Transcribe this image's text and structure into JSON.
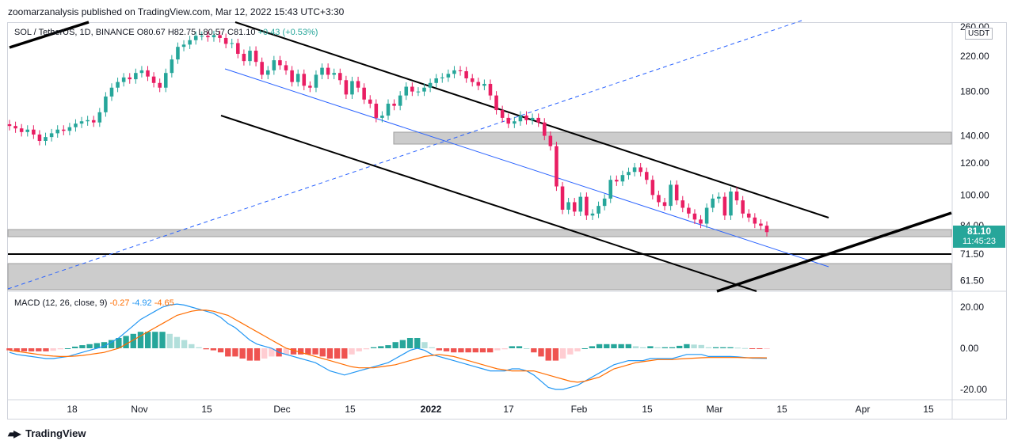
{
  "publisher": "zoomarzanalysis published on TradingView.com, Mar 12, 2022 15:43 UTC+3:30",
  "brand": "TradingView",
  "legend": {
    "symbol": "SOL / TetherUS, 1D, BINANCE",
    "ohlc": "O80.67 H82.75 L80.57 C81.10",
    "change": "+0.43 (+0.53%)"
  },
  "currency": "USDT",
  "last_price": {
    "value": "81.10",
    "countdown": "11:45:23"
  },
  "macd_legend": {
    "label": "MACD (12, 26, close, 9)",
    "hist": "-0.27",
    "macd": "-4.92",
    "signal": "-4.65"
  },
  "colors": {
    "up": "#26a69a",
    "down": "#e91e63",
    "macd": "#2196f3",
    "signal": "#ff6d00",
    "hist_up": "#26a69a",
    "hist_down": "#ef5350",
    "zone": "#cccccc"
  },
  "chart_data": [
    {
      "type": "candlestick",
      "title": "SOL / TetherUS, 1D, BINANCE",
      "x_tick_labels": [
        "18",
        "Nov",
        "15",
        "Dec",
        "15",
        "2022",
        "17",
        "Feb",
        "15",
        "Mar",
        "15",
        "Apr",
        "15"
      ],
      "y_tick_labels": [
        "260.00",
        "220.00",
        "180.00",
        "140.00",
        "120.00",
        "100.00",
        "84.00",
        "71.50",
        "61.50"
      ],
      "price_scale": "log",
      "ylim": [
        56,
        260
      ],
      "last_close": 81.1,
      "close_path": [
        148,
        146,
        143,
        145,
        141,
        136,
        139,
        142,
        145,
        144,
        147,
        150,
        152,
        153,
        151,
        160,
        175,
        184,
        190,
        195,
        193,
        200,
        203,
        196,
        189,
        184,
        200,
        216,
        232,
        235,
        241,
        247,
        247,
        245,
        248,
        244,
        236,
        237,
        223,
        214,
        227,
        213,
        198,
        203,
        215,
        209,
        203,
        190,
        199,
        186,
        184,
        198,
        206,
        198,
        200,
        192,
        177,
        191,
        184,
        172,
        168,
        155,
        157,
        168,
        166,
        176,
        185,
        180,
        180,
        184,
        189,
        194,
        195,
        199,
        203,
        202,
        194,
        190,
        186,
        188,
        176,
        162,
        155,
        150,
        152,
        157,
        153,
        155,
        151,
        140,
        132,
        105,
        92,
        96,
        91,
        99,
        89,
        90,
        94,
        98,
        109,
        108,
        112,
        114,
        117,
        114,
        109,
        100,
        96,
        94,
        106,
        97,
        93,
        90,
        87,
        85,
        93,
        98,
        99,
        89,
        102,
        97,
        90,
        88,
        85,
        84,
        81
      ]
    },
    {
      "type": "line",
      "title": "MACD (12, 26, close, 9)",
      "y_tick_labels": [
        "20.00",
        "0.00",
        "-20.00"
      ],
      "ylim": [
        -25,
        25
      ],
      "series": [
        {
          "name": "MACD",
          "values": [
            -2,
            -3,
            -3.5,
            -4,
            -4.5,
            -5,
            -5,
            -4.5,
            -4,
            -3,
            -2,
            -1,
            0,
            1,
            3,
            5,
            8,
            11,
            14,
            16,
            18,
            20,
            21,
            21.5,
            21,
            20,
            19,
            18,
            17,
            15,
            12,
            10,
            7,
            4,
            2,
            1,
            0,
            -2,
            -3,
            -4,
            -5,
            -6,
            -7,
            -9,
            -11,
            -12,
            -13,
            -12,
            -11,
            -10,
            -9,
            -8,
            -7,
            -5,
            -3,
            -1,
            0,
            -1,
            -3,
            -4,
            -5,
            -6,
            -7,
            -8,
            -9,
            -10,
            -11,
            -11,
            -11,
            -10,
            -10,
            -11,
            -13,
            -16,
            -19,
            -20,
            -20,
            -19,
            -18,
            -16,
            -14,
            -12,
            -10,
            -8,
            -7,
            -6,
            -6,
            -6,
            -5,
            -5,
            -5,
            -5,
            -4,
            -3,
            -3,
            -3,
            -4,
            -4,
            -4,
            -4,
            -4.2,
            -4.5,
            -4.8,
            -4.9,
            -4.92
          ]
        },
        {
          "name": "Signal",
          "values": [
            -1,
            -1.5,
            -2,
            -2.5,
            -3,
            -3.5,
            -3.8,
            -4,
            -4,
            -3.8,
            -3.5,
            -3,
            -2.5,
            -2,
            -1,
            0,
            2,
            4,
            6,
            8,
            10,
            12,
            14,
            16,
            17,
            18,
            18.5,
            18.5,
            18,
            17,
            16,
            14,
            12,
            10,
            8,
            6,
            4,
            2,
            0,
            -1,
            -2,
            -3,
            -4,
            -5,
            -6,
            -7,
            -8,
            -9,
            -9.5,
            -9.5,
            -9.5,
            -9,
            -8.5,
            -8,
            -7,
            -6,
            -5,
            -4,
            -3.5,
            -3,
            -3.5,
            -4,
            -5,
            -6,
            -7,
            -8,
            -9,
            -10,
            -10.5,
            -11,
            -11,
            -11,
            -11,
            -12,
            -13,
            -14,
            -15,
            -16,
            -16.5,
            -16,
            -15,
            -14,
            -12,
            -10,
            -9,
            -8,
            -7,
            -6.5,
            -6,
            -5.5,
            -5.5,
            -5.5,
            -5.2,
            -5,
            -4.8,
            -4.6,
            -4.5,
            -4.5,
            -4.5,
            -4.5,
            -4.5,
            -4.6,
            -4.6,
            -4.6,
            -4.65
          ]
        }
      ]
    }
  ]
}
